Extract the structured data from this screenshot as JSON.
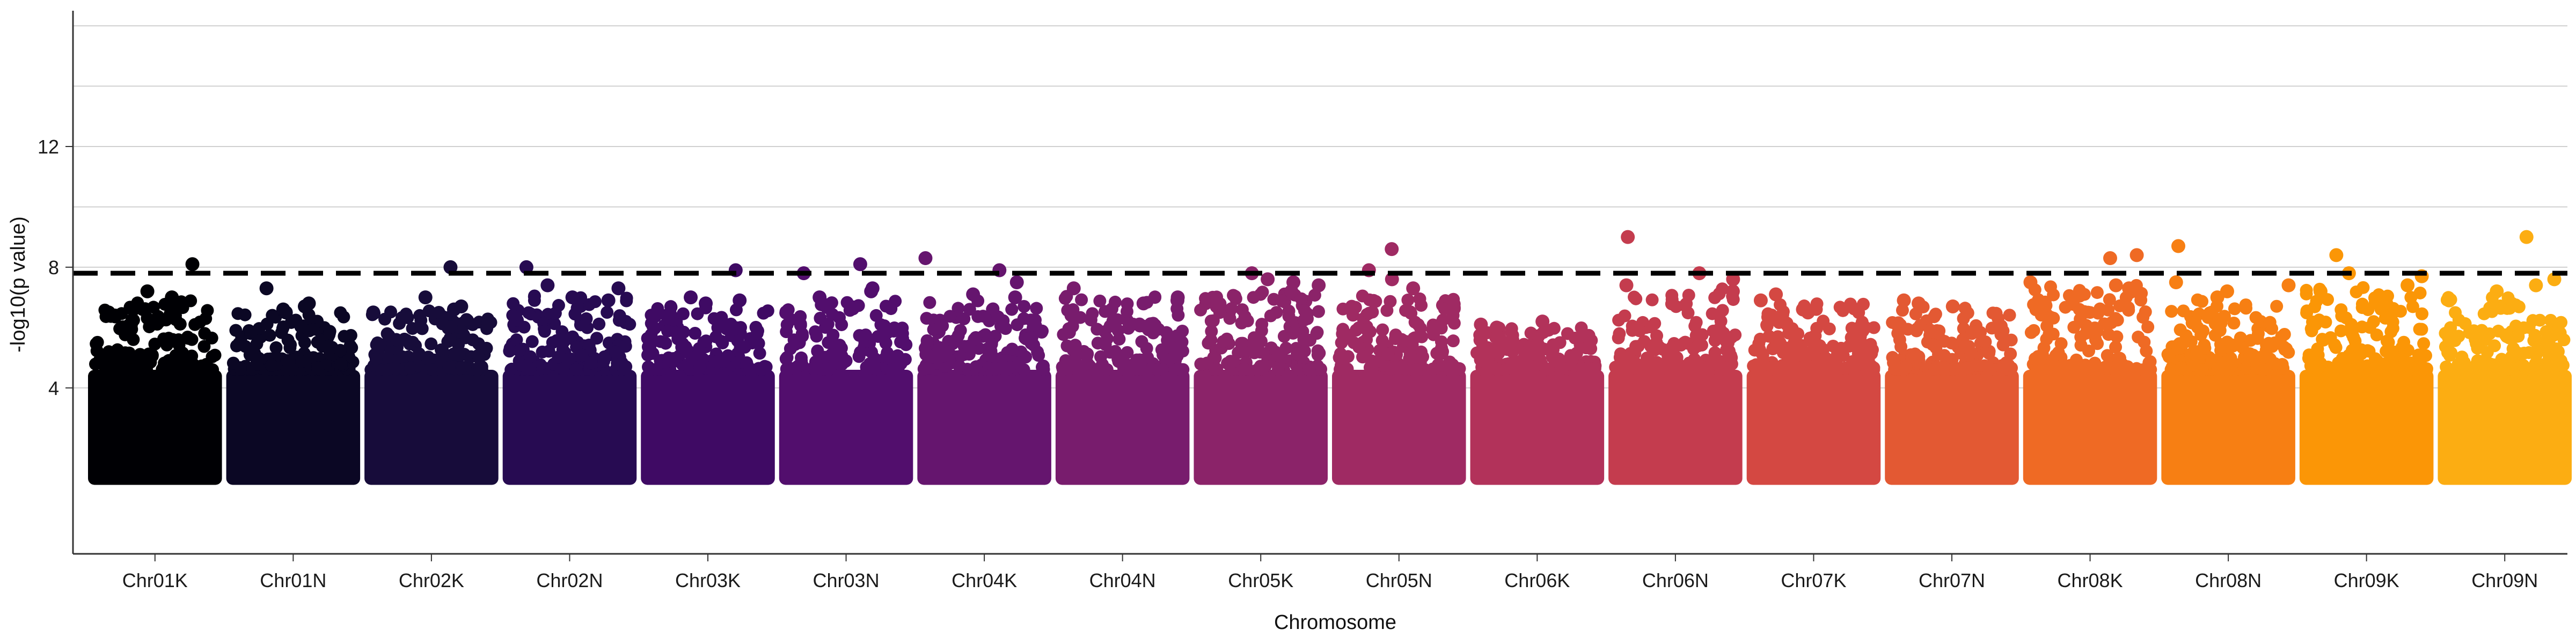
{
  "chart_data": {
    "type": "scatter",
    "subtype": "manhattan",
    "title": "",
    "xlabel": "Chromosome",
    "ylabel": "-log10(p value)",
    "ylim": [
      -1.5,
      16.5
    ],
    "y_ticks": [
      4,
      8,
      12
    ],
    "threshold": 7.8,
    "threshold_style": "dashed",
    "grid": "y-major",
    "legend": "none",
    "point_floor": 1.0,
    "chromosomes": [
      {
        "name": "Chr01K",
        "color": "#000004",
        "peak": 6.9,
        "top_points": [
          8.1,
          7.2,
          7.0,
          6.7,
          6.6,
          6.5
        ]
      },
      {
        "name": "Chr01N",
        "color": "#0b0724",
        "peak": 6.5,
        "top_points": [
          7.3,
          6.8,
          6.7,
          6.6,
          6.5
        ]
      },
      {
        "name": "Chr02K",
        "color": "#170c3a",
        "peak": 6.6,
        "top_points": [
          8.0,
          7.0,
          6.7,
          6.6,
          6.5
        ]
      },
      {
        "name": "Chr02N",
        "color": "#270b52",
        "peak": 7.2,
        "top_points": [
          8.0,
          7.4,
          7.3,
          7.0,
          6.9
        ]
      },
      {
        "name": "Chr03K",
        "color": "#3f0a64",
        "peak": 6.7,
        "top_points": [
          7.9,
          7.0,
          6.9,
          6.8
        ]
      },
      {
        "name": "Chr03N",
        "color": "#520e6d",
        "peak": 6.9,
        "top_points": [
          8.1,
          7.8,
          7.3,
          7.2,
          7.0
        ]
      },
      {
        "name": "Chr04K",
        "color": "#65156e",
        "peak": 6.9,
        "top_points": [
          8.3,
          7.9,
          7.5,
          7.1,
          7.0
        ]
      },
      {
        "name": "Chr04N",
        "color": "#781c6d",
        "peak": 7.1,
        "top_points": [
          7.3,
          7.0,
          6.9,
          6.8
        ]
      },
      {
        "name": "Chr05K",
        "color": "#8b2369",
        "peak": 7.2,
        "top_points": [
          7.8,
          7.6,
          7.5,
          7.4,
          7.2
        ]
      },
      {
        "name": "Chr05N",
        "color": "#9f2a63",
        "peak": 7.1,
        "top_points": [
          8.6,
          7.9,
          7.6,
          7.3
        ]
      },
      {
        "name": "Chr06K",
        "color": "#b2325a",
        "peak": 6.0,
        "top_points": [
          6.2,
          6.1,
          6.0
        ]
      },
      {
        "name": "Chr06N",
        "color": "#c43c4e",
        "peak": 7.3,
        "top_points": [
          9.0,
          7.8,
          7.6,
          7.4,
          7.2
        ]
      },
      {
        "name": "Chr07K",
        "color": "#d44842",
        "peak": 6.8,
        "top_points": [
          7.1,
          6.9,
          6.6,
          6.5
        ]
      },
      {
        "name": "Chr07N",
        "color": "#e35933",
        "peak": 6.7,
        "top_points": [
          6.9,
          6.8,
          6.7
        ]
      },
      {
        "name": "Chr08K",
        "color": "#ef6a24",
        "peak": 7.4,
        "top_points": [
          8.4,
          8.3,
          7.5,
          7.4,
          7.3
        ]
      },
      {
        "name": "Chr08N",
        "color": "#f77f13",
        "peak": 7.0,
        "top_points": [
          8.7,
          7.5,
          7.4,
          7.2,
          7.0
        ]
      },
      {
        "name": "Chr09K",
        "color": "#fb9606",
        "peak": 7.4,
        "top_points": [
          8.4,
          7.8,
          7.7,
          7.4,
          7.2
        ]
      },
      {
        "name": "Chr09N",
        "color": "#fcad12",
        "peak": 7.0,
        "top_points": [
          9.0,
          7.6,
          7.4,
          7.2,
          6.9
        ]
      }
    ]
  }
}
